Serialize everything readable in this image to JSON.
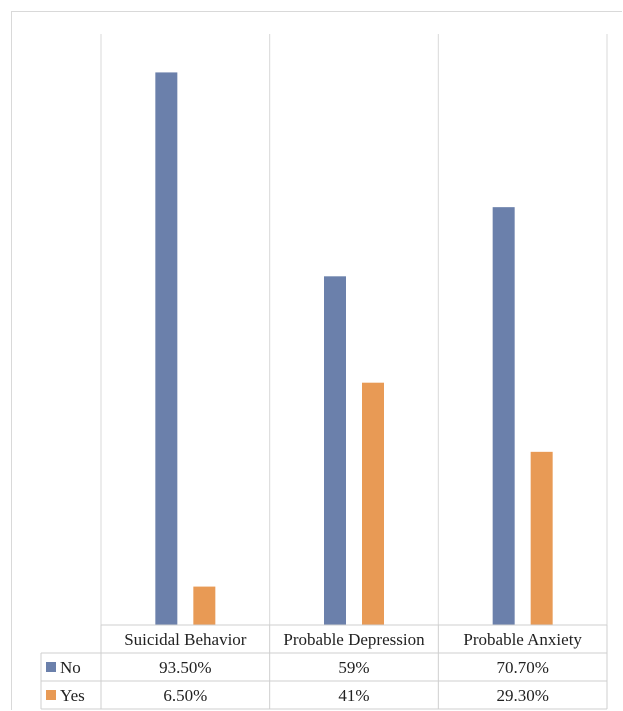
{
  "chart_data": {
    "type": "bar",
    "categories": [
      "Suicidal Behavior",
      "Probable Depression",
      "Probable Anxiety"
    ],
    "series": [
      {
        "name": "No",
        "values": [
          93.5,
          59,
          70.7
        ],
        "labels": [
          "93.50%",
          "59%",
          "70.70%"
        ],
        "color": "#6b80ab"
      },
      {
        "name": "Yes",
        "values": [
          6.5,
          41,
          29.3
        ],
        "labels": [
          "6.50%",
          "41%",
          "29.30%"
        ],
        "color": "#e89a55"
      }
    ],
    "ylim": [
      0,
      100
    ],
    "grid": "vertical-category-separators",
    "legend": "data-table-below"
  }
}
